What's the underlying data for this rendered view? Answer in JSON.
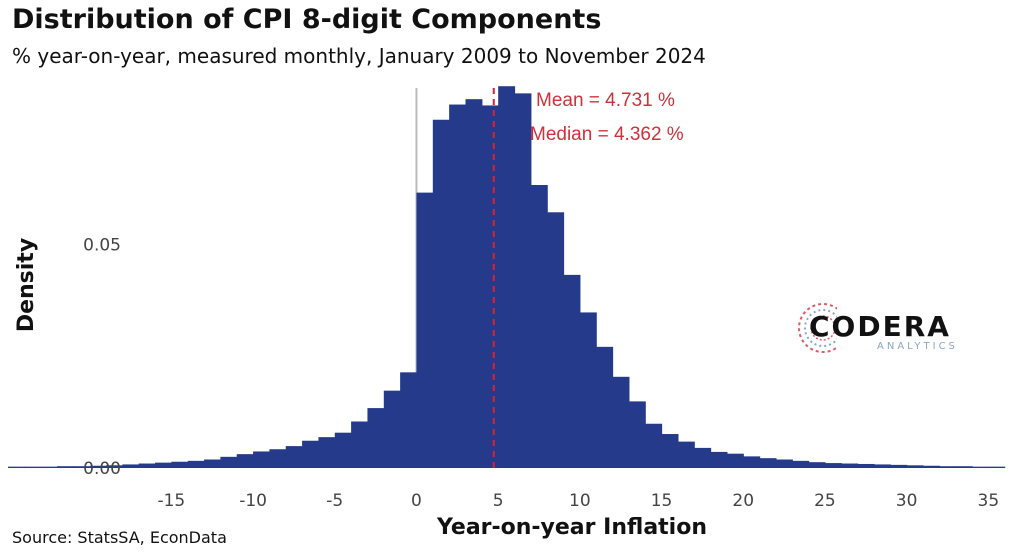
{
  "title": "Distribution of CPI 8-digit Components",
  "subtitle": "% year-on-year, measured monthly, January 2009 to November 2024",
  "source": "Source: StatsSA, EconData",
  "logo": {
    "name": "CODERA",
    "tagline": "ANALYTICS"
  },
  "colors": {
    "bars": "#263a8c",
    "annotation": "#d0303a",
    "zero_line": "#bbbbbb"
  },
  "chart_data": {
    "type": "bar",
    "subtype": "histogram",
    "xlabel": "Year-on-year Inflation",
    "ylabel": "Density",
    "xlim": [
      -25,
      37
    ],
    "ylim": [
      0,
      0.085
    ],
    "x_ticks": [
      "-15",
      "-10",
      "-5",
      "0",
      "5",
      "10",
      "15",
      "20",
      "25",
      "30",
      "35"
    ],
    "x_tick_values": [
      -15,
      -10,
      -5,
      0,
      5,
      10,
      15,
      20,
      25,
      30,
      35
    ],
    "y_ticks": [
      "0.00",
      "0.05"
    ],
    "y_tick_values": [
      0,
      0.05
    ],
    "bin_width": 1,
    "bin_starts": [
      -25,
      -24,
      -23,
      -22,
      -21,
      -20,
      -19,
      -18,
      -17,
      -16,
      -15,
      -14,
      -13,
      -12,
      -11,
      -10,
      -9,
      -8,
      -7,
      -6,
      -5,
      -4,
      -3,
      -2,
      -1,
      0,
      1,
      2,
      3,
      4,
      5,
      6,
      7,
      8,
      9,
      10,
      11,
      12,
      13,
      14,
      15,
      16,
      17,
      18,
      19,
      20,
      21,
      22,
      23,
      24,
      25,
      26,
      27,
      28,
      29,
      30,
      31,
      32,
      33,
      34,
      35
    ],
    "densities": [
      0.0003,
      0.0003,
      0.0003,
      0.0004,
      0.0004,
      0.0005,
      0.0006,
      0.0008,
      0.001,
      0.0012,
      0.0014,
      0.0016,
      0.0019,
      0.0025,
      0.0031,
      0.0037,
      0.0042,
      0.0049,
      0.0061,
      0.0069,
      0.0079,
      0.0104,
      0.0134,
      0.0173,
      0.0214,
      0.0616,
      0.0779,
      0.0813,
      0.0825,
      0.0811,
      0.0854,
      0.0838,
      0.0633,
      0.0572,
      0.0432,
      0.0348,
      0.0271,
      0.0204,
      0.0149,
      0.0099,
      0.0076,
      0.0059,
      0.0045,
      0.0036,
      0.0032,
      0.0026,
      0.0022,
      0.0019,
      0.0016,
      0.0013,
      0.0011,
      0.001,
      0.0009,
      0.0008,
      0.0007,
      0.0006,
      0.0005,
      0.0004,
      0.0004,
      0.0003,
      0.0003
    ],
    "mean": 4.731,
    "median": 4.362,
    "annotations": [
      "Mean = 4.731 %",
      "Median = 4.362 %"
    ]
  }
}
